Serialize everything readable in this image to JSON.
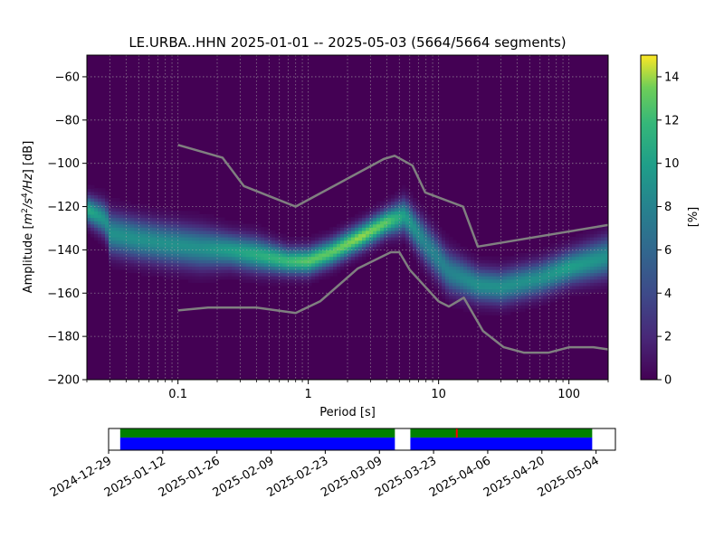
{
  "chart_data": [
    {
      "type": "heatmap",
      "title": "LE.URBA..HHN   2025-01-01 -- 2025-05-03  (5664/5664 segments)",
      "xlabel": "Period [s]",
      "ylabel": "Amplitude [m²/s⁴/Hz] [dB]",
      "ylabel_main": "Amplitude [",
      "ylabel_unit_m": "m",
      "ylabel_exp_2": "2",
      "ylabel_unit_s": "/s",
      "ylabel_exp_4": "4",
      "ylabel_unit_hz": "/Hz",
      "ylabel_tail": "] [dB]",
      "x_scale": "log",
      "xlim": [
        0.02,
        200
      ],
      "ylim": [
        -200,
        -50
      ],
      "x_ticks": [
        {
          "value": 0.1,
          "label": "0.1"
        },
        {
          "value": 1,
          "label": "1"
        },
        {
          "value": 10,
          "label": "10"
        },
        {
          "value": 100,
          "label": "100"
        }
      ],
      "y_ticks": [
        {
          "value": -60,
          "label": "−60"
        },
        {
          "value": -80,
          "label": "−80"
        },
        {
          "value": -100,
          "label": "−100"
        },
        {
          "value": -120,
          "label": "−120"
        },
        {
          "value": -140,
          "label": "−140"
        },
        {
          "value": -160,
          "label": "−160"
        },
        {
          "value": -180,
          "label": "−180"
        },
        {
          "value": -200,
          "label": "−200"
        }
      ],
      "grid": true,
      "background_color": "#440154",
      "colormap": "viridis",
      "density_ridge": [
        {
          "period": 0.02,
          "db": -121,
          "width": 4,
          "peak": 11
        },
        {
          "period": 0.028,
          "db": -126,
          "width": 5,
          "peak": 9
        },
        {
          "period": 0.03,
          "db": -132,
          "width": 6,
          "peak": 9
        },
        {
          "period": 0.05,
          "db": -135,
          "width": 6,
          "peak": 9
        },
        {
          "period": 0.08,
          "db": -137,
          "width": 6,
          "peak": 9
        },
        {
          "period": 0.15,
          "db": -139,
          "width": 6,
          "peak": 9
        },
        {
          "period": 0.25,
          "db": -140,
          "width": 5,
          "peak": 10
        },
        {
          "period": 0.4,
          "db": -142,
          "width": 5,
          "peak": 11
        },
        {
          "period": 0.7,
          "db": -145,
          "width": 4,
          "peak": 12
        },
        {
          "period": 1,
          "db": -145,
          "width": 4,
          "peak": 13
        },
        {
          "period": 1.5,
          "db": -141,
          "width": 4,
          "peak": 13
        },
        {
          "period": 2.5,
          "db": -134,
          "width": 4,
          "peak": 14
        },
        {
          "period": 4,
          "db": -127,
          "width": 4,
          "peak": 13
        },
        {
          "period": 5.5,
          "db": -124,
          "width": 5,
          "peak": 10
        },
        {
          "period": 8,
          "db": -137,
          "width": 6,
          "peak": 8
        },
        {
          "period": 12,
          "db": -150,
          "width": 6,
          "peak": 8
        },
        {
          "period": 20,
          "db": -156,
          "width": 5,
          "peak": 9
        },
        {
          "period": 30,
          "db": -157,
          "width": 5,
          "peak": 9
        },
        {
          "period": 60,
          "db": -153,
          "width": 5,
          "peak": 9
        },
        {
          "period": 100,
          "db": -148,
          "width": 5,
          "peak": 10
        },
        {
          "period": 200,
          "db": -143,
          "width": 6,
          "peak": 9
        }
      ],
      "noise_models": [
        {
          "curve": "high",
          "color": "#808080",
          "points": [
            [
              0.1,
              -91.5
            ],
            [
              0.22,
              -97.4
            ],
            [
              0.32,
              -110.5
            ],
            [
              0.8,
              -120
            ],
            [
              3.8,
              -98.0
            ],
            [
              4.6,
              -96.5
            ],
            [
              6.3,
              -101.0
            ],
            [
              7.9,
              -113.5
            ],
            [
              15.4,
              -120.0
            ],
            [
              20,
              -138.5
            ],
            [
              200,
              -128.5
            ]
          ]
        },
        {
          "curve": "low",
          "color": "#808080",
          "points": [
            [
              0.1,
              -168.0
            ],
            [
              0.17,
              -166.7
            ],
            [
              0.4,
              -166.7
            ],
            [
              0.8,
              -169.2
            ],
            [
              1.24,
              -163.7
            ],
            [
              2.4,
              -148.6
            ],
            [
              4.3,
              -141.1
            ],
            [
              5.0,
              -141.1
            ],
            [
              6.0,
              -149.2
            ],
            [
              10.0,
              -163.8
            ],
            [
              12.0,
              -166.2
            ],
            [
              15.6,
              -162.1
            ],
            [
              21.9,
              -177.5
            ],
            [
              31.6,
              -185.0
            ],
            [
              45.0,
              -187.5
            ],
            [
              70.0,
              -187.5
            ],
            [
              101.0,
              -185.0
            ],
            [
              154.0,
              -185.0
            ],
            [
              200,
              -186.0
            ]
          ]
        }
      ],
      "colorbar": {
        "label": "[%]",
        "range": [
          0,
          15
        ],
        "ticks": [
          {
            "value": 0,
            "label": "0"
          },
          {
            "value": 2,
            "label": "2"
          },
          {
            "value": 4,
            "label": "4"
          },
          {
            "value": 6,
            "label": "6"
          },
          {
            "value": 8,
            "label": "8"
          },
          {
            "value": 10,
            "label": "10"
          },
          {
            "value": 12,
            "label": "12"
          },
          {
            "value": 14,
            "label": "14"
          }
        ]
      }
    },
    {
      "type": "timeline",
      "range": [
        "2024-12-29",
        "2025-05-09"
      ],
      "date_ticks": [
        "2024-12-29",
        "2025-01-12",
        "2025-01-26",
        "2025-02-09",
        "2025-02-23",
        "2025-03-09",
        "2025-03-23",
        "2025-04-06",
        "2025-04-20",
        "2025-05-04"
      ],
      "coverage_segments": [
        {
          "start": "2025-01-01",
          "end": "2025-03-13"
        },
        {
          "start": "2025-03-17",
          "end": "2025-05-03"
        }
      ],
      "coverage_colors": {
        "top": "#008000",
        "bottom": "#0000ff",
        "gap": "#ffffff",
        "mark": "#ff0000"
      },
      "marks": [
        "2025-03-29"
      ]
    }
  ]
}
